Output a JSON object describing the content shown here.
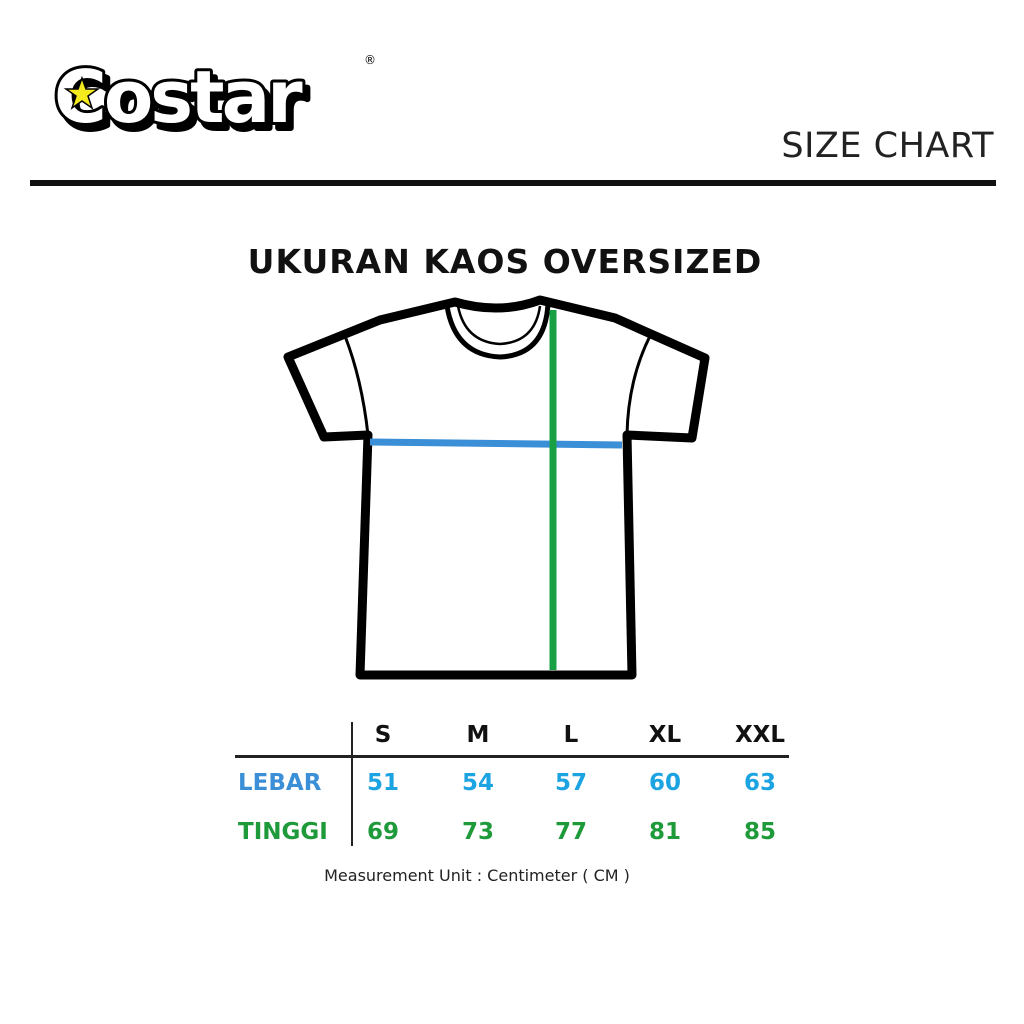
{
  "brand": {
    "logo_text": "Costar",
    "registered_mark": "®"
  },
  "header": {
    "label": "SIZE CHART"
  },
  "title": "UKURAN KAOS OVERSIZED",
  "colors": {
    "lebar_label": "#3a8fd6",
    "lebar_values": "#1ba3e2",
    "tinggi": "#1e9a3a",
    "width_line": "#3a8fd6",
    "length_line": "#1aa044",
    "star": "#f5ea1e"
  },
  "table": {
    "sizes": [
      "S",
      "M",
      "L",
      "XL",
      "XXL"
    ],
    "rows": [
      {
        "label": "LEBAR",
        "values": [
          "51",
          "54",
          "57",
          "60",
          "63"
        ]
      },
      {
        "label": "TINGGI",
        "values": [
          "69",
          "73",
          "77",
          "81",
          "85"
        ]
      }
    ]
  },
  "footnote": "Measurement Unit : Centimeter ( CM )"
}
